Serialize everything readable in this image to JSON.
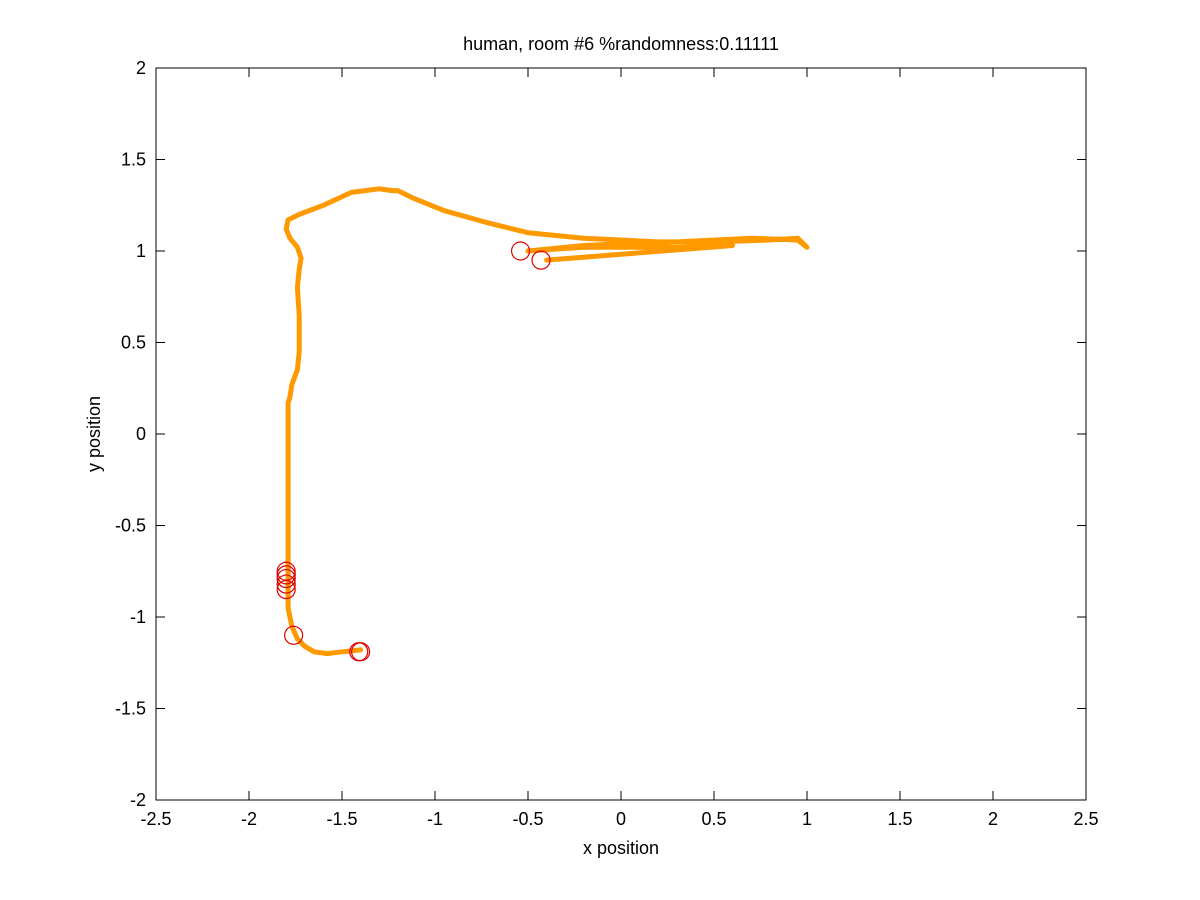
{
  "chart_data": {
    "type": "line",
    "title": "human, room #6 %randomness:0.11111",
    "xlabel": "x position",
    "ylabel": "y position",
    "xlim": [
      -2.5,
      2.5
    ],
    "ylim": [
      -2,
      2
    ],
    "xticks": [
      -2.5,
      -2,
      -1.5,
      -1,
      -0.5,
      0,
      0.5,
      1,
      1.5,
      2,
      2.5
    ],
    "yticks": [
      -2,
      -1.5,
      -1,
      -0.5,
      0,
      0.5,
      1,
      1.5,
      2
    ],
    "xtick_labels": [
      "-2.5",
      "-2",
      "-1.5",
      "-1",
      "-0.5",
      "0",
      "0.5",
      "1",
      "1.5",
      "2",
      "2.5"
    ],
    "ytick_labels": [
      "-2",
      "-1.5",
      "-1",
      "-0.5",
      "0",
      "0.5",
      "1",
      "1.5",
      "2"
    ],
    "grid": false,
    "series": [
      {
        "color": "#ff9900",
        "x": [
          -1.4,
          -1.5,
          -1.58,
          -1.65,
          -1.7,
          -1.74,
          -1.77,
          -1.79,
          -1.79,
          -1.79,
          -1.79,
          -1.79,
          -1.79,
          -1.79,
          -1.78,
          -1.77,
          -1.74,
          -1.73,
          -1.73,
          -1.74,
          -1.73,
          -1.72,
          -1.74,
          -1.78,
          -1.8,
          -1.79,
          -1.73,
          -1.6,
          -1.45,
          -1.3,
          -1.23,
          -1.2,
          -1.12,
          -0.95,
          -0.7,
          -0.5,
          -0.2,
          0.2,
          0.5,
          0.8,
          0.95,
          1.0,
          0.95,
          0.7,
          0.3,
          0.0,
          -0.2,
          -0.5,
          -0.2,
          0.0,
          0.3,
          0.6,
          -0.4
        ],
        "y": [
          -1.18,
          -1.19,
          -1.2,
          -1.19,
          -1.16,
          -1.12,
          -1.05,
          -0.95,
          -0.82,
          -0.6,
          -0.3,
          0.0,
          0.08,
          0.17,
          0.2,
          0.27,
          0.35,
          0.45,
          0.65,
          0.8,
          0.9,
          0.96,
          1.02,
          1.07,
          1.12,
          1.17,
          1.2,
          1.25,
          1.32,
          1.34,
          1.33,
          1.33,
          1.29,
          1.22,
          1.15,
          1.1,
          1.07,
          1.05,
          1.05,
          1.06,
          1.07,
          1.02,
          1.06,
          1.07,
          1.05,
          1.04,
          1.03,
          1.0,
          1.02,
          1.02,
          1.02,
          1.03,
          0.95
        ]
      }
    ],
    "markers": {
      "color": "#dd0000",
      "x": [
        -1.4,
        -1.41,
        -1.76,
        -1.8,
        -1.8,
        -1.8,
        -1.8,
        -1.8,
        -0.54,
        -0.43
      ],
      "y": [
        -1.19,
        -1.19,
        -1.1,
        -0.85,
        -0.82,
        -0.79,
        -0.77,
        -0.75,
        1.0,
        0.95
      ]
    }
  }
}
